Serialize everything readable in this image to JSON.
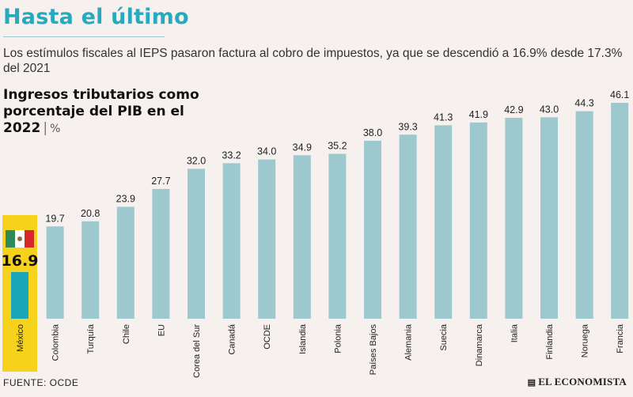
{
  "headline": "Hasta el último",
  "subtitle": "Los estímulos fiscales al IEPS pasaron factura al cobro de impuestos, ya que se descendió a 16.9% desde 17.3% del 2021",
  "chart_title_line1": "Ingresos tributarios como",
  "chart_title_line2": "porcentaje del PIB en el 2022",
  "chart_unit": "%",
  "source": "FUENTE:  OCDE",
  "brand": "EL ECONOMISTA",
  "colors": {
    "bar": "#9cc8ce",
    "highlight_bar": "#1aa5b8",
    "highlight_bg": "#f6d21c",
    "headline": "#28a9bd"
  },
  "chart_data": {
    "type": "bar",
    "categories": [
      "México",
      "Colombia",
      "Turquía",
      "Chile",
      "EU",
      "Corea del Sur",
      "Canadá",
      "OCDE",
      "Islandia",
      "Polonia",
      "Países Bajos",
      "Alemania",
      "Suecia",
      "Dinamarca",
      "Italia",
      "Finlandia",
      "Noruega",
      "Francia"
    ],
    "values": [
      16.9,
      19.7,
      20.8,
      23.9,
      27.7,
      32.0,
      33.2,
      34.0,
      34.9,
      35.2,
      38.0,
      39.3,
      41.3,
      41.9,
      42.9,
      43.0,
      44.3,
      46.1
    ],
    "value_labels": [
      "16.9",
      "19.7",
      "20.8",
      "23.9",
      "27.7",
      "32.0",
      "33.2",
      "34.0",
      "34.9",
      "35.2",
      "38.0",
      "39.3",
      "41.3",
      "41.9",
      "42.9",
      "43.0",
      "44.3",
      "46.1"
    ],
    "highlight": "México",
    "ylim": [
      0,
      46.1
    ],
    "xlabel": "",
    "ylabel": "",
    "grid": false,
    "legend": "none"
  }
}
